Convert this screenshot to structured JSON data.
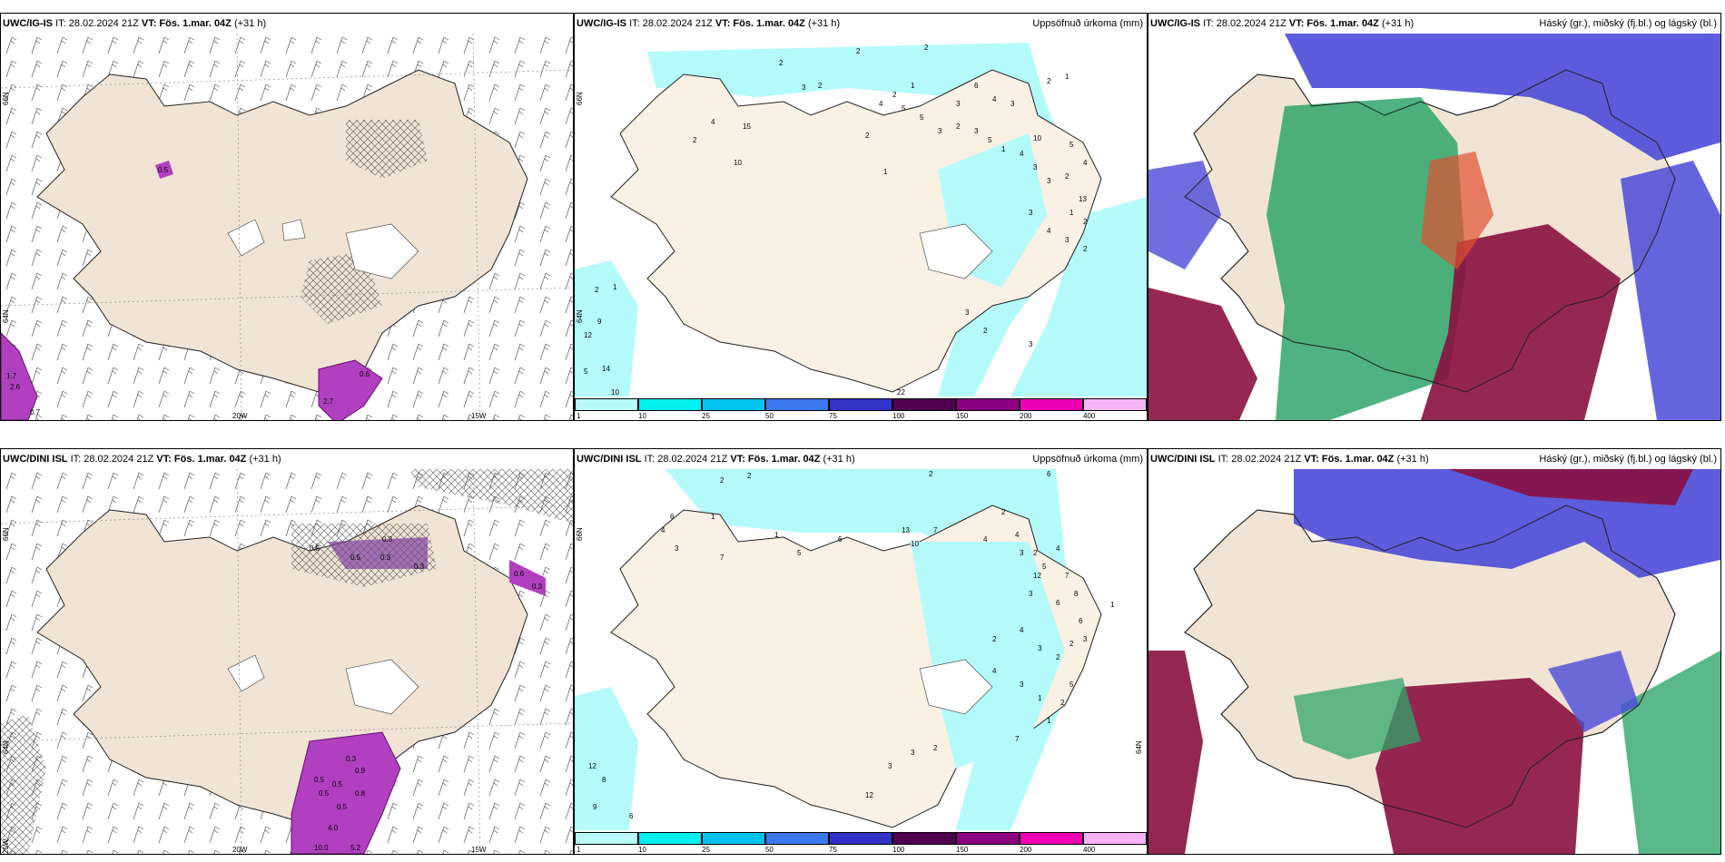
{
  "panels": [
    {
      "id": "p1",
      "model": "UWC/IG-IS",
      "it_label": "IT: 28.02.2024 21Z",
      "vt_label": "VT: Fös. 1.mar. 04Z",
      "lead": "(+31 h)",
      "right_title": "",
      "lon_labels": [
        "20W",
        "15W"
      ],
      "lat_labels": [
        "66N",
        "64N"
      ],
      "values": [
        "0.5",
        "0.6",
        "2.7",
        "0.7",
        "2.6",
        "1.7"
      ]
    },
    {
      "id": "p2",
      "model": "UWC/IG-IS",
      "it_label": "IT: 28.02.2024 21Z",
      "vt_label": "VT: Fös. 1.mar. 04Z",
      "lead": "(+31 h)",
      "right_title": "Uppsöfnuð úrkoma (mm)",
      "lat_labels": [
        "66N",
        "64N"
      ],
      "values": [
        "2",
        "2",
        "2",
        "3",
        "2",
        "2",
        "1",
        "3",
        "4",
        "5",
        "5",
        "6",
        "4",
        "3",
        "2",
        "1",
        "15",
        "10",
        "4",
        "2",
        "2",
        "1",
        "3",
        "2",
        "3",
        "5",
        "1",
        "4",
        "3",
        "3",
        "5",
        "4",
        "10",
        "2",
        "13",
        "3",
        "4",
        "3",
        "2",
        "1",
        "2",
        "12",
        "9",
        "5",
        "14",
        "10",
        "2",
        "1",
        "3",
        "22",
        "2",
        "3"
      ]
    },
    {
      "id": "p3",
      "model": "UWC/IG-IS",
      "it_label": "IT: 28.02.2024 21Z",
      "vt_label": "VT: Fös. 1.mar. 04Z",
      "lead": "(+31 h)",
      "right_title": "Háský (gr.), miðský (fj.bl.) og lágský (bl.)"
    },
    {
      "id": "p4",
      "model": "UWC/DINI ISL",
      "it_label": "IT: 28.02.2024 21Z",
      "vt_label": "VT: Fös. 1.mar. 04Z",
      "lead": "(+31 h)",
      "right_title": "",
      "lon_labels": [
        "20W",
        "15W"
      ],
      "lat_labels": [
        "66N",
        "64N",
        "25W"
      ],
      "values": [
        "0.5",
        "0.3",
        "0.3",
        "0.5",
        "0.3",
        "0.6",
        "0.3",
        "0.3",
        "0.9",
        "0.5",
        "0.5",
        "0.5",
        "0.5",
        "0.8",
        "4.0",
        "10.0",
        "5.2"
      ]
    },
    {
      "id": "p5",
      "model": "UWC/DINI ISL",
      "it_label": "IT: 28.02.2024 21Z",
      "vt_label": "VT: Fös. 1.mar. 04Z",
      "lead": "(+31 h)",
      "right_title": "Uppsöfnuð úrkoma (mm)",
      "lat_labels": [
        "66N",
        "64N"
      ],
      "values": [
        "2",
        "2",
        "2",
        "6",
        "6",
        "4",
        "1",
        "3",
        "7",
        "6",
        "1",
        "5",
        "13",
        "10",
        "7",
        "4",
        "2",
        "4",
        "3",
        "2",
        "5",
        "4",
        "12",
        "7",
        "3",
        "6",
        "8",
        "1",
        "2",
        "4",
        "3",
        "2",
        "2",
        "3",
        "6",
        "4",
        "3",
        "1",
        "2",
        "1",
        "5",
        "7",
        "12",
        "8",
        "9",
        "6",
        "3",
        "3",
        "2",
        "12"
      ]
    },
    {
      "id": "p6",
      "model": "UWC/DINI ISL",
      "it_label": "IT: 28.02.2024 21Z",
      "vt_label": "VT: Fös. 1.mar. 04Z",
      "lead": "(+31 h)",
      "right_title": "Háský (gr.), miðský (fj.bl.) og lágský (bl.)"
    }
  ],
  "colorbar": {
    "ticks": [
      "1",
      "10",
      "25",
      "50",
      "75",
      "100",
      "150",
      "200",
      "400"
    ],
    "colors": [
      "#b6fafa",
      "#00f0f0",
      "#00c3f0",
      "#3c78f0",
      "#3232c8",
      "#500050",
      "#8c0082",
      "#f000b4",
      "#f5b4f5"
    ]
  },
  "colors": {
    "land": "#f1e4d4",
    "precip_light": "#b4fafa",
    "high_cloud": "#2fa66a",
    "mid_cloud": "#4a4ad8",
    "low_cloud": "#8a1040",
    "snow": "#b040c0"
  }
}
